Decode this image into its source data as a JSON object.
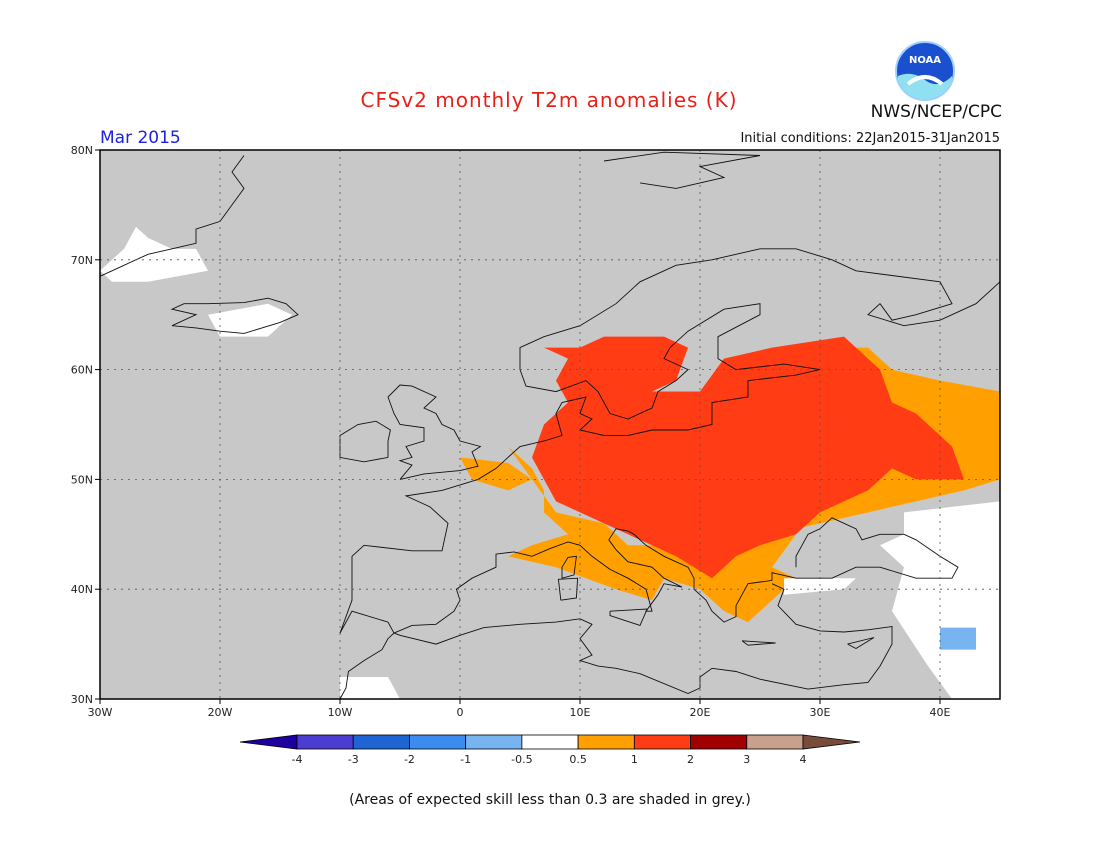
{
  "title": "CFSv2 monthly T2m anomalies (K)",
  "forecast_month": "Mar 2015",
  "initial_conditions": "Initial conditions: 22Jan2015-31Jan2015",
  "organization": "NWS/NCEP/CPC",
  "logo_text": "NOAA",
  "footnote": "(Areas of expected skill less than 0.3 are shaded in grey.)",
  "map": {
    "lon_range": [
      -30,
      45
    ],
    "lat_range": [
      30,
      80
    ],
    "lat_labels": [
      {
        "lat": 80,
        "label": "80N"
      },
      {
        "lat": 70,
        "label": "70N"
      },
      {
        "lat": 60,
        "label": "60N"
      },
      {
        "lat": 50,
        "label": "50N"
      },
      {
        "lat": 40,
        "label": "40N"
      },
      {
        "lat": 30,
        "label": "30N"
      }
    ],
    "lon_labels": [
      {
        "lon": -30,
        "label": "30W"
      },
      {
        "lon": -20,
        "label": "20W"
      },
      {
        "lon": -10,
        "label": "10W"
      },
      {
        "lon": 0,
        "label": "0"
      },
      {
        "lon": 10,
        "label": "10E"
      },
      {
        "lon": 20,
        "label": "20E"
      },
      {
        "lon": 30,
        "label": "30E"
      },
      {
        "lon": 40,
        "label": "40E"
      }
    ],
    "colors": {
      "background": "#c8c8c8",
      "neutral": "#ffffff",
      "c_0_5_1": "#ffa000",
      "c_1_2": "#ff3c14",
      "c_neg1_neg05": "#78b4f0"
    }
  },
  "colorbar": {
    "bins": [
      {
        "color": "#1e00a0"
      },
      {
        "color": "#4b3cd2"
      },
      {
        "color": "#1e64d2"
      },
      {
        "color": "#3c8cf0"
      },
      {
        "color": "#78b4f0"
      },
      {
        "color": "#ffffff"
      },
      {
        "color": "#ffa000"
      },
      {
        "color": "#ff3c14"
      },
      {
        "color": "#a00000"
      },
      {
        "color": "#c8a08c"
      },
      {
        "color": "#784b3c"
      }
    ],
    "tick_labels": [
      "-4",
      "-3",
      "-2",
      "-1",
      "-0.5",
      "0.5",
      "1",
      "2",
      "3",
      "4"
    ]
  }
}
